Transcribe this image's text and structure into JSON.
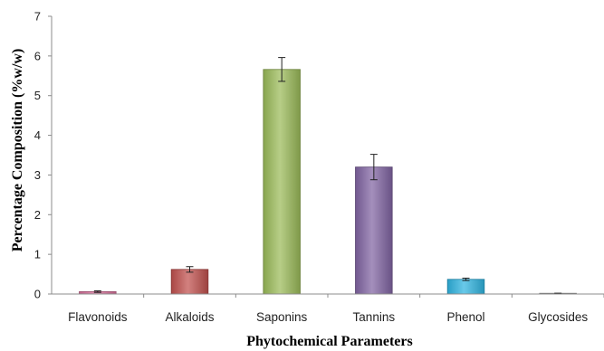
{
  "chart_data": {
    "type": "bar",
    "title": "",
    "xlabel": "Phytochemical Parameters",
    "ylabel": "Percentage Composition (%w/w)",
    "ylim": [
      0,
      7
    ],
    "yticks": [
      "0",
      "1",
      "2",
      "3",
      "4",
      "5",
      "6",
      "7"
    ],
    "grid": false,
    "legend": "none",
    "categories": [
      "Flavonoids",
      "Alkaloids",
      "Saponins",
      "Tannins",
      "Phenol",
      "Glycosides"
    ],
    "values": [
      0.06,
      0.62,
      5.66,
      3.2,
      0.37,
      0.01
    ],
    "errors": [
      0.02,
      0.07,
      0.3,
      0.32,
      0.03,
      0.01
    ],
    "colors": [
      "#d96f9a",
      "#c0504d",
      "#9bbb59",
      "#8064a2",
      "#2fb4e0",
      "#a6a6a6"
    ]
  }
}
